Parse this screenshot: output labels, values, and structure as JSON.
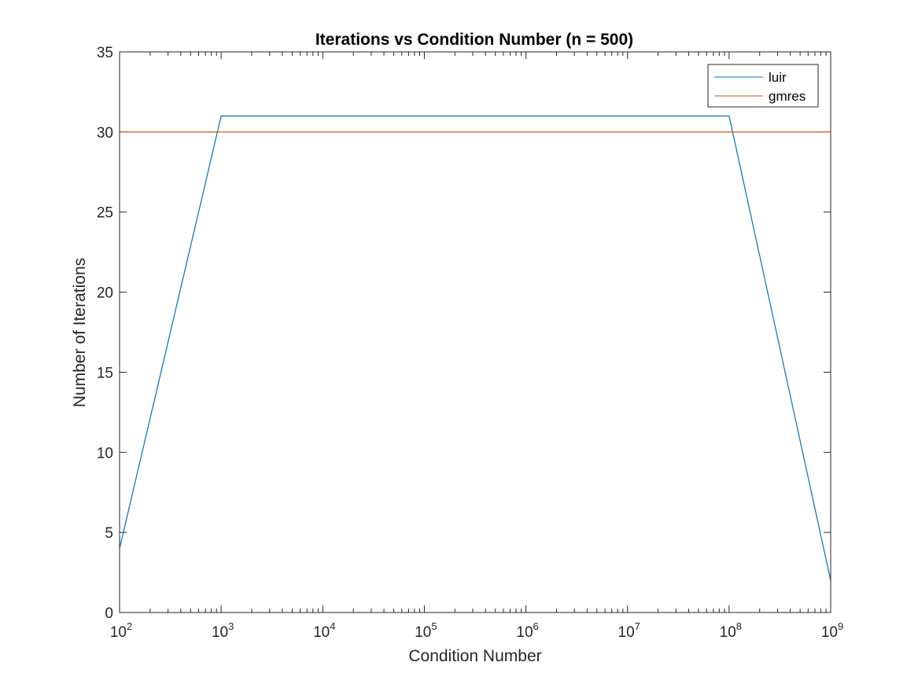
{
  "chart_data": {
    "type": "line",
    "title": "Iterations vs Condition Number (n = 500)",
    "xlabel": "Condition Number",
    "ylabel": "Number of Iterations",
    "xscale": "log",
    "xlim": [
      100,
      1000000000
    ],
    "ylim": [
      0,
      35
    ],
    "x_ticks": [
      {
        "base": "10",
        "exp": "2"
      },
      {
        "base": "10",
        "exp": "3"
      },
      {
        "base": "10",
        "exp": "4"
      },
      {
        "base": "10",
        "exp": "5"
      },
      {
        "base": "10",
        "exp": "6"
      },
      {
        "base": "10",
        "exp": "7"
      },
      {
        "base": "10",
        "exp": "8"
      },
      {
        "base": "10",
        "exp": "9"
      }
    ],
    "y_ticks": [
      "0",
      "5",
      "10",
      "15",
      "20",
      "25",
      "30",
      "35"
    ],
    "grid": false,
    "legend_position": "top-right",
    "series": [
      {
        "name": "luir",
        "color": "#0072BD",
        "x": [
          100,
          1000,
          10000,
          100000,
          1000000,
          10000000,
          100000000,
          1000000000
        ],
        "y": [
          4,
          31,
          31,
          31,
          31,
          31,
          31,
          2
        ]
      },
      {
        "name": "gmres",
        "color": "#D95319",
        "x": [
          100,
          1000,
          10000,
          100000,
          1000000,
          10000000,
          100000000,
          1000000000
        ],
        "y": [
          30,
          30,
          30,
          30,
          30,
          30,
          30,
          30
        ]
      }
    ]
  }
}
